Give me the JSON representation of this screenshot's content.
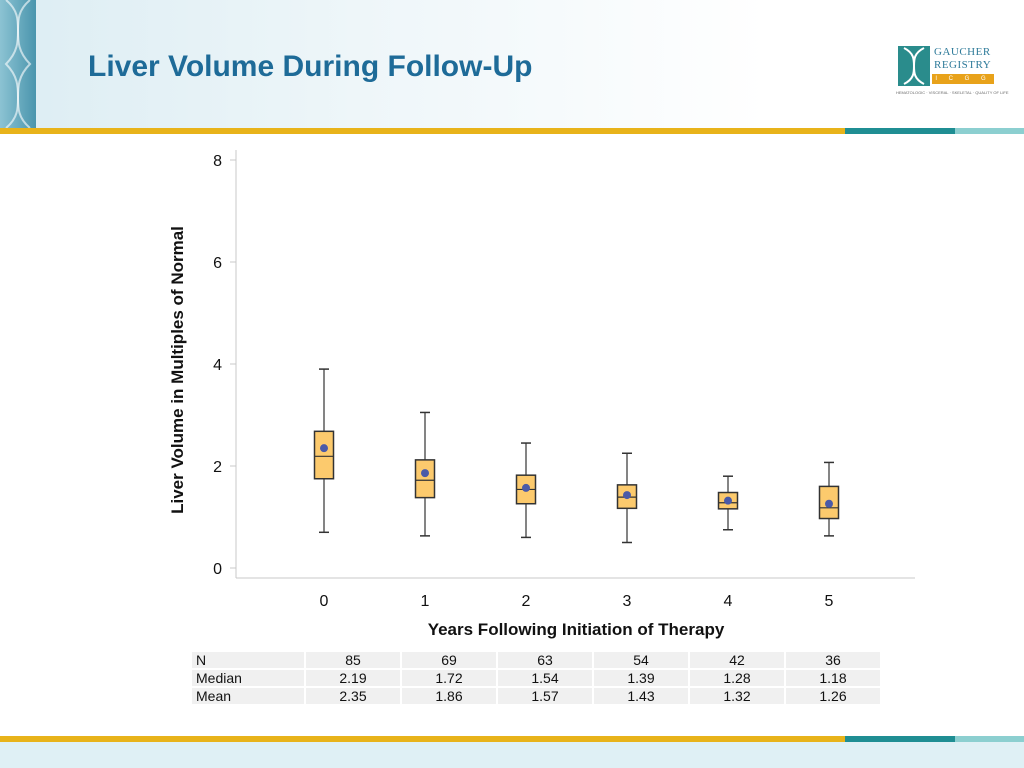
{
  "slide": {
    "title": "Liver Volume During Follow-Up"
  },
  "logo": {
    "line1": "GAUCHER",
    "line2": "REGISTRY",
    "bar_text": "I C G G",
    "tagline": "HEMATOLOGIC · VISCERAL · SKELETAL · QUALITY OF LIFE"
  },
  "colors": {
    "title": "#1e6b98",
    "box_fill": "#fcca6d",
    "mean_dot": "#4a5aa8",
    "band_yellow": "#e8b31a",
    "band_teal": "#1f8e93"
  },
  "chart_data": {
    "type": "box",
    "xlabel": "Years Following Initiation of Therapy",
    "ylabel": "Liver Volume in Multiples of Normal",
    "categories": [
      "0",
      "1",
      "2",
      "3",
      "4",
      "5"
    ],
    "ylim": [
      0,
      8
    ],
    "yticks": [
      "0",
      "2",
      "4",
      "6",
      "8"
    ],
    "boxes": [
      {
        "min": 0.7,
        "q1": 1.75,
        "median": 2.19,
        "q3": 2.68,
        "max": 3.9,
        "mean": 2.35
      },
      {
        "min": 0.63,
        "q1": 1.38,
        "median": 1.72,
        "q3": 2.12,
        "max": 3.05,
        "mean": 1.86
      },
      {
        "min": 0.6,
        "q1": 1.26,
        "median": 1.54,
        "q3": 1.82,
        "max": 2.45,
        "mean": 1.57
      },
      {
        "min": 0.5,
        "q1": 1.17,
        "median": 1.39,
        "q3": 1.63,
        "max": 2.25,
        "mean": 1.43
      },
      {
        "min": 0.75,
        "q1": 1.16,
        "median": 1.28,
        "q3": 1.48,
        "max": 1.8,
        "mean": 1.32
      },
      {
        "min": 0.63,
        "q1": 0.97,
        "median": 1.18,
        "q3": 1.6,
        "max": 2.07,
        "mean": 1.26
      }
    ],
    "grid": false,
    "legend": "none"
  },
  "table": {
    "rows": [
      {
        "label": "N",
        "values": [
          "85",
          "69",
          "63",
          "54",
          "42",
          "36"
        ]
      },
      {
        "label": "Median",
        "values": [
          "2.19",
          "1.72",
          "1.54",
          "1.39",
          "1.28",
          "1.18"
        ]
      },
      {
        "label": "Mean",
        "values": [
          "2.35",
          "1.86",
          "1.57",
          "1.43",
          "1.32",
          "1.26"
        ]
      }
    ]
  }
}
